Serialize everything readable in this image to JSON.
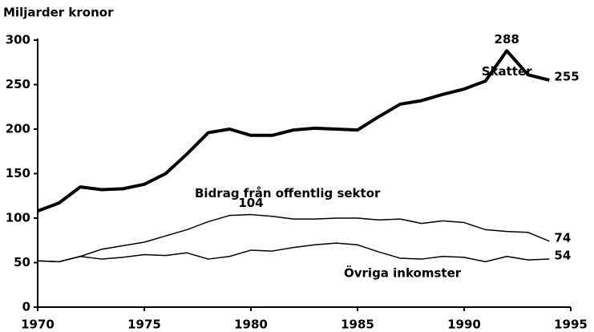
{
  "chart_data": {
    "type": "line",
    "y_label": "Miljarder kronor",
    "x": [
      1970,
      1971,
      1972,
      1973,
      1974,
      1975,
      1976,
      1977,
      1978,
      1979,
      1980,
      1981,
      1982,
      1983,
      1984,
      1985,
      1986,
      1987,
      1988,
      1989,
      1990,
      1991,
      1992,
      1993,
      1994
    ],
    "series": [
      {
        "name": "Skatter",
        "color": "#000000",
        "line_width": 4,
        "values": [
          108,
          117,
          135,
          132,
          133,
          138,
          150,
          172,
          196,
          200,
          193,
          193,
          199,
          201,
          200,
          199,
          214,
          228,
          232,
          239,
          245,
          254,
          288,
          261,
          255
        ],
        "value_labels": [
          null,
          null,
          null,
          null,
          null,
          null,
          null,
          null,
          null,
          null,
          null,
          null,
          null,
          null,
          null,
          null,
          null,
          null,
          null,
          null,
          null,
          null,
          "288",
          null,
          "255"
        ]
      },
      {
        "name": "Bidrag från offentlig sektor",
        "color": "#000000",
        "line_width": 1.5,
        "values": [
          52,
          51,
          57,
          65,
          69,
          73,
          80,
          87,
          96,
          103,
          104,
          102,
          99,
          99,
          100,
          100,
          98,
          99,
          94,
          97,
          95,
          87,
          85,
          84,
          74
        ],
        "value_labels": [
          null,
          null,
          null,
          null,
          null,
          null,
          null,
          null,
          null,
          null,
          "104",
          null,
          null,
          null,
          null,
          null,
          null,
          null,
          null,
          null,
          null,
          null,
          null,
          null,
          "74"
        ]
      },
      {
        "name": "Övriga inkomster",
        "color": "#000000",
        "line_width": 1.5,
        "values": [
          52,
          51,
          57,
          54,
          56,
          59,
          58,
          61,
          54,
          57,
          64,
          63,
          67,
          70,
          72,
          70,
          62,
          55,
          54,
          57,
          56,
          51,
          57,
          53,
          54
        ],
        "value_labels": [
          null,
          null,
          null,
          null,
          null,
          null,
          null,
          null,
          null,
          null,
          null,
          null,
          null,
          null,
          null,
          null,
          null,
          null,
          null,
          null,
          null,
          null,
          null,
          null,
          "54"
        ]
      }
    ],
    "xlim": [
      1970,
      1995
    ],
    "xticks": [
      1970,
      1975,
      1980,
      1985,
      1990,
      1995
    ],
    "ylim": [
      0,
      300
    ],
    "yticks": [
      0,
      50,
      100,
      150,
      200,
      250,
      300
    ],
    "grid": false
  }
}
